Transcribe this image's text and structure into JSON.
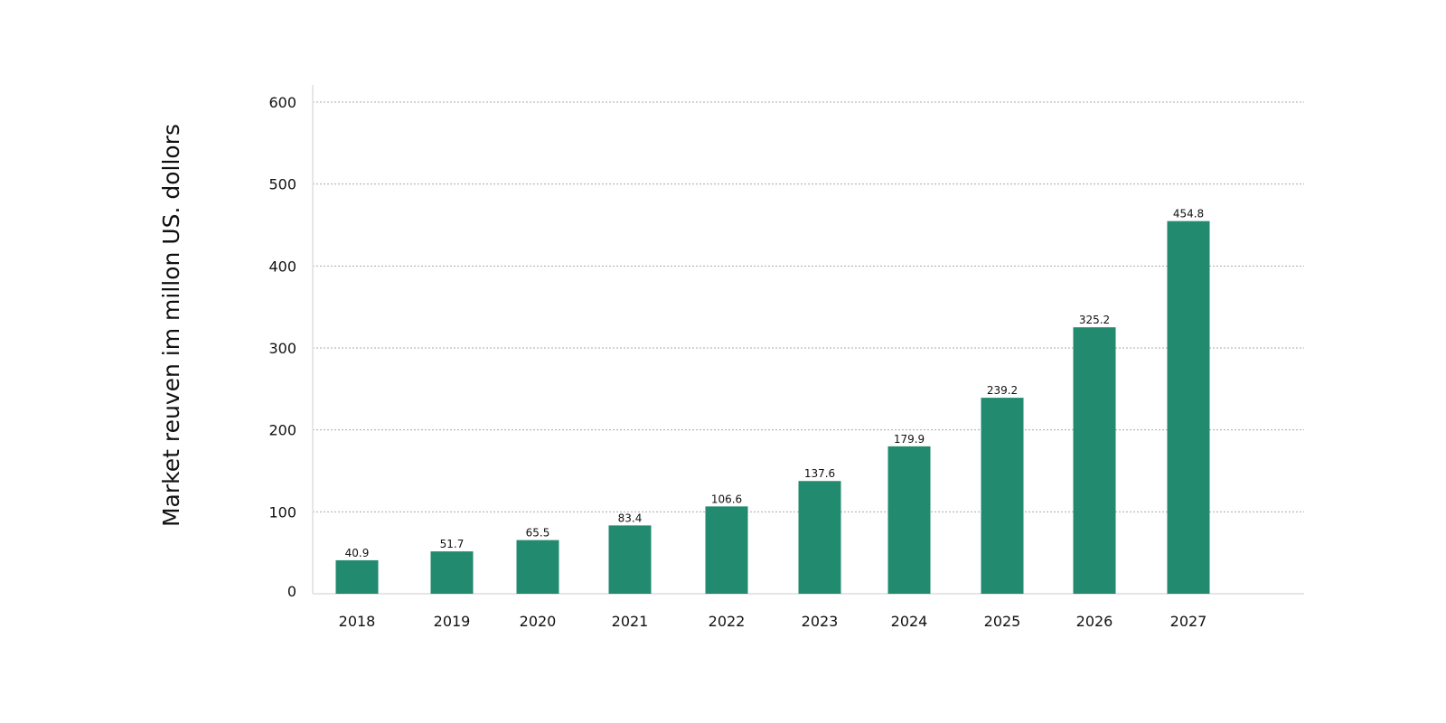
{
  "chart_data": {
    "type": "bar",
    "title": "",
    "xlabel": "",
    "ylabel": "Market reuven im millon US. dollors",
    "categories": [
      "2018",
      "2019",
      "2020",
      "2021",
      "2022",
      "2023",
      "2024",
      "2025",
      "2026",
      "2027"
    ],
    "values": [
      40.9,
      51.7,
      65.5,
      83.4,
      106.6,
      137.6,
      179.9,
      239.2,
      325.2,
      454.8
    ],
    "data_labels": [
      "40.9",
      "51.7",
      "65.5",
      "83.4",
      "106.6",
      "137.6",
      "179.9",
      "239.2",
      "325.2",
      "454.8"
    ],
    "ylim": [
      0,
      600
    ],
    "yticks": [
      "0",
      "100",
      "200",
      "300",
      "400",
      "500",
      "600"
    ],
    "grid": true,
    "legend": "none",
    "bar_color": "#228a6f"
  }
}
